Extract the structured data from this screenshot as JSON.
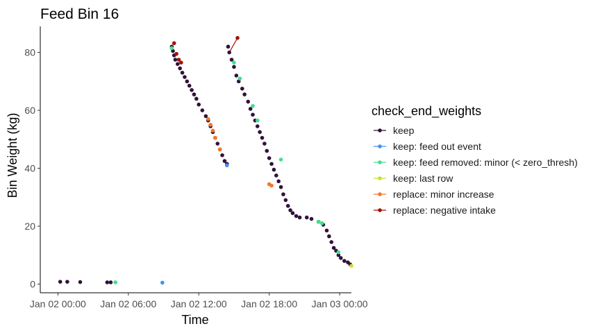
{
  "chart_data": {
    "type": "scatter",
    "title": "Feed Bin 16",
    "xlabel": "Time",
    "ylabel": "Bin Weight (kg)",
    "x_unit": "hours since Jan 02 00:00",
    "xlim": [
      -1.5,
      25.0
    ],
    "ylim": [
      -3,
      89
    ],
    "x_ticks": [
      {
        "value": 0,
        "label": "Jan 02 00:00"
      },
      {
        "value": 6,
        "label": "Jan 02 06:00"
      },
      {
        "value": 12,
        "label": "Jan 02 12:00"
      },
      {
        "value": 18,
        "label": "Jan 02 18:00"
      },
      {
        "value": 24,
        "label": "Jan 03 00:00"
      }
    ],
    "y_ticks": [
      0,
      20,
      40,
      60,
      80
    ],
    "grid": false,
    "legend": {
      "title": "check_end_weights",
      "position": "right",
      "entries": [
        {
          "label": "keep",
          "color": "#30123b"
        },
        {
          "label": "keep: feed out event",
          "color": "#4690f0"
        },
        {
          "label": "keep: feed removed: minor (< zero_thresh)",
          "color": "#3ee08a"
        },
        {
          "label": "keep: last row",
          "color": "#c9e02c"
        },
        {
          "label": "replace: minor increase",
          "color": "#f2782a"
        },
        {
          "label": "replace: negative intake",
          "color": "#a51205"
        }
      ]
    },
    "series": [
      {
        "name": "keep",
        "color": "#30123b",
        "points": [
          [
            0.2,
            0.8
          ],
          [
            0.8,
            0.8
          ],
          [
            1.9,
            0.7
          ],
          [
            4.2,
            0.6
          ],
          [
            4.5,
            0.6
          ],
          [
            9.7,
            82
          ],
          [
            9.8,
            80.5
          ],
          [
            9.9,
            79
          ],
          [
            10.0,
            77.5
          ],
          [
            10.2,
            76
          ],
          [
            10.4,
            74.5
          ],
          [
            10.6,
            73
          ],
          [
            10.8,
            71.5
          ],
          [
            11.0,
            70
          ],
          [
            11.2,
            68.5
          ],
          [
            11.4,
            67
          ],
          [
            11.6,
            65.5
          ],
          [
            11.8,
            64
          ],
          [
            12.0,
            62
          ],
          [
            12.3,
            60
          ],
          [
            12.6,
            58
          ],
          [
            12.8,
            56.5
          ],
          [
            13.0,
            54.5
          ],
          [
            13.2,
            52.5
          ],
          [
            13.4,
            50.5
          ],
          [
            13.6,
            48.5
          ],
          [
            13.8,
            46.5
          ],
          [
            14.0,
            44.5
          ],
          [
            14.2,
            42.5
          ],
          [
            14.4,
            41.5
          ],
          [
            14.5,
            82
          ],
          [
            14.6,
            80
          ],
          [
            14.8,
            77.5
          ],
          [
            15.0,
            75
          ],
          [
            15.2,
            72
          ],
          [
            15.4,
            70
          ],
          [
            15.7,
            67.5
          ],
          [
            15.9,
            65.5
          ],
          [
            16.2,
            63
          ],
          [
            16.4,
            60.5
          ],
          [
            16.6,
            58.5
          ],
          [
            16.8,
            56.5
          ],
          [
            17.0,
            54.5
          ],
          [
            17.2,
            52.5
          ],
          [
            17.4,
            50.5
          ],
          [
            17.6,
            48.5
          ],
          [
            17.8,
            46
          ],
          [
            18.0,
            43.5
          ],
          [
            18.2,
            41.5
          ],
          [
            18.4,
            39.5
          ],
          [
            18.6,
            37.5
          ],
          [
            18.8,
            35.5
          ],
          [
            19.0,
            33.5
          ],
          [
            19.2,
            31
          ],
          [
            19.4,
            29
          ],
          [
            19.6,
            27
          ],
          [
            19.8,
            25.5
          ],
          [
            20.0,
            24.5
          ],
          [
            20.3,
            23.5
          ],
          [
            20.6,
            23
          ],
          [
            21.2,
            23
          ],
          [
            21.6,
            22.5
          ],
          [
            22.2,
            21.5
          ],
          [
            22.6,
            20.5
          ],
          [
            22.9,
            18.5
          ],
          [
            23.1,
            16.5
          ],
          [
            23.3,
            14.5
          ],
          [
            23.5,
            12.5
          ],
          [
            23.7,
            11.5
          ],
          [
            23.9,
            10
          ],
          [
            24.1,
            9
          ],
          [
            24.4,
            8
          ],
          [
            24.7,
            7.5
          ],
          [
            24.9,
            6.8
          ]
        ]
      },
      {
        "name": "keep: feed out event",
        "color": "#4690f0",
        "points": [
          [
            8.9,
            0.5
          ],
          [
            14.4,
            41
          ]
        ]
      },
      {
        "name": "keep: feed removed: minor (< zero_thresh)",
        "color": "#3ee08a",
        "points": [
          [
            4.9,
            0.6
          ],
          [
            9.7,
            81.5
          ],
          [
            15.0,
            76.5
          ],
          [
            15.5,
            71
          ],
          [
            16.6,
            61.5
          ],
          [
            17.0,
            56.5
          ],
          [
            19.0,
            43
          ],
          [
            22.2,
            21.5
          ],
          [
            22.5,
            21
          ],
          [
            23.9,
            11
          ]
        ]
      },
      {
        "name": "keep: last row",
        "color": "#c9e02c",
        "points": [
          [
            25.0,
            6.3
          ]
        ]
      },
      {
        "name": "replace: minor increase",
        "color": "#f2782a",
        "points": [
          [
            12.8,
            57
          ],
          [
            13.0,
            55
          ],
          [
            13.2,
            53
          ],
          [
            13.4,
            50.5
          ],
          [
            13.8,
            46.5
          ],
          [
            18.0,
            34.5
          ],
          [
            18.2,
            34
          ]
        ]
      },
      {
        "name": "replace: negative intake",
        "color": "#a51205",
        "points": [
          [
            9.9,
            83.2
          ],
          [
            10.1,
            79.5
          ],
          [
            10.3,
            77.5
          ],
          [
            10.5,
            76.5
          ],
          [
            15.3,
            85
          ]
        ]
      }
    ]
  }
}
